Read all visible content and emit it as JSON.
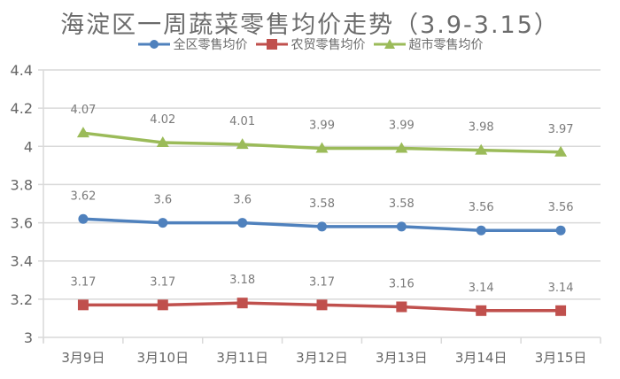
{
  "chart_data": {
    "type": "line",
    "title": "海淀区一周蔬菜零售均价走势（3.9-3.15）",
    "xlabel": "",
    "ylabel": "",
    "categories": [
      "3月9日",
      "3月10日",
      "3月11日",
      "3月12日",
      "3月13日",
      "3月14日",
      "3月15日"
    ],
    "ylim": [
      3,
      4.4
    ],
    "yticks": [
      "3",
      "3.2",
      "3.4",
      "3.6",
      "3.8",
      "4",
      "4.2",
      "4.4"
    ],
    "grid": true,
    "legend_position": "top",
    "series": [
      {
        "name": "全区零售均价",
        "color": "#4f81bd",
        "marker": "circle",
        "values": [
          3.62,
          3.6,
          3.6,
          3.58,
          3.58,
          3.56,
          3.56
        ]
      },
      {
        "name": "农贸零售均价",
        "color": "#c0504d",
        "marker": "square",
        "values": [
          3.17,
          3.17,
          3.18,
          3.17,
          3.16,
          3.14,
          3.14
        ]
      },
      {
        "name": "超市零售均价",
        "color": "#9bbb59",
        "marker": "triangle",
        "values": [
          4.07,
          4.02,
          4.01,
          3.99,
          3.99,
          3.98,
          3.97
        ]
      }
    ],
    "data_labels": {
      "全区零售均价": [
        "3.62",
        "3.6",
        "3.6",
        "3.58",
        "3.58",
        "3.56",
        "3.56"
      ],
      "农贸零售均价": [
        "3.17",
        "3.17",
        "3.18",
        "3.17",
        "3.16",
        "3.14",
        "3.14"
      ],
      "超市零售均价": [
        "4.07",
        "4.02",
        "4.01",
        "3.99",
        "3.99",
        "3.98",
        "3.97"
      ]
    }
  },
  "legend": {
    "items": [
      {
        "label": "全区零售均价",
        "color": "#4f81bd"
      },
      {
        "label": "农贸零售均价",
        "color": "#c0504d"
      },
      {
        "label": "超市零售均价",
        "color": "#9bbb59"
      }
    ]
  }
}
